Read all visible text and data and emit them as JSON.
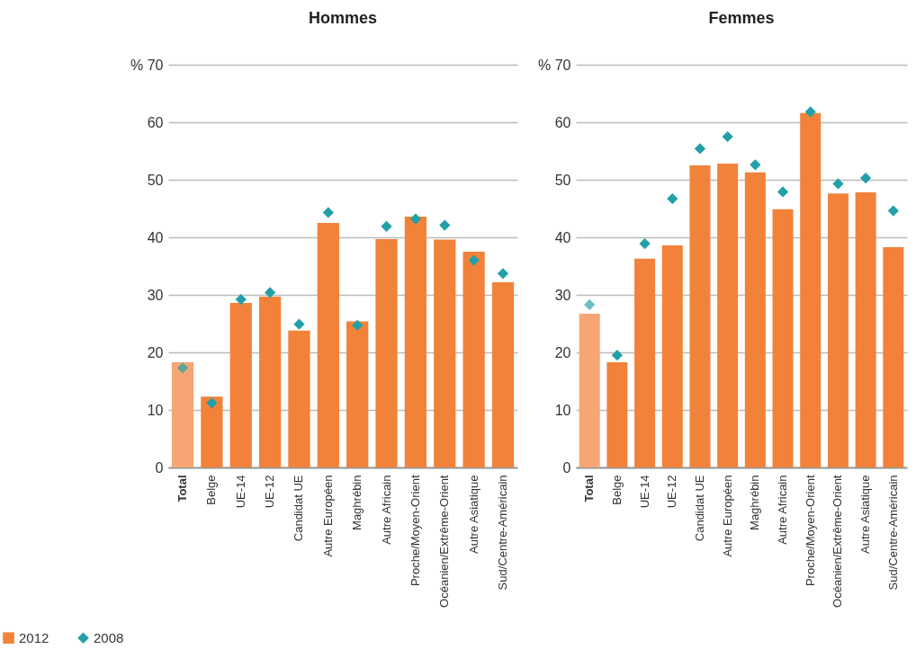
{
  "chart_data": [
    {
      "type": "bar",
      "title": "Hommes",
      "categories": [
        "Total",
        "Belge",
        "UE-14",
        "UE-12",
        "Candidat UE",
        "Autre Européen",
        "Maghrébin",
        "Autre Africain",
        "Proche/Moyen-Orient",
        "Océanien/Extrême-Orient",
        "Autre Asiatique",
        "Sud/Centre-Américain"
      ],
      "series": [
        {
          "name": "2012",
          "type": "bar",
          "color": "#f2823a",
          "colors": [
            "#f5a673",
            "#f2823a",
            "#f2823a",
            "#f2823a",
            "#f2823a",
            "#f2823a",
            "#f2823a",
            "#f2823a",
            "#f2823a",
            "#f2823a",
            "#f2823a",
            "#f2823a"
          ],
          "values": [
            18.3,
            12.3,
            28.6,
            29.7,
            23.8,
            42.5,
            25.4,
            39.7,
            43.6,
            39.6,
            37.5,
            32.2
          ]
        },
        {
          "name": "2008",
          "type": "scatter",
          "marker": "diamond",
          "color": "#22a0a8",
          "colors": [
            "#5fa49a",
            "#22a0a8",
            "#22a0a8",
            "#22a0a8",
            "#22a0a8",
            "#22a0a8",
            "#22a0a8",
            "#22a0a8",
            "#22a0a8",
            "#22a0a8",
            "#22a0a8",
            "#22a0a8"
          ],
          "values": [
            17.3,
            11.2,
            29.2,
            30.4,
            24.9,
            44.3,
            24.7,
            41.9,
            43.2,
            42.1,
            36.0,
            33.7
          ]
        }
      ],
      "ylim": [
        0,
        70
      ],
      "yticks": [
        0,
        10,
        20,
        30,
        40,
        50,
        60,
        {
          "value": 70,
          "label": "% 70"
        }
      ],
      "grid": "y",
      "legend": "bottom left"
    },
    {
      "type": "bar",
      "title": "Femmes",
      "categories": [
        "Total",
        "Belge",
        "UE-14",
        "UE-12",
        "Candidat UE",
        "Autre Européen",
        "Maghrébin",
        "Autre Africain",
        "Proche/Moyen-Orient",
        "Océanien/Extrême-Orient",
        "Autre Asiatique",
        "Sud/Centre-Américain"
      ],
      "series": [
        {
          "name": "2012",
          "type": "bar",
          "color": "#f2823a",
          "colors": [
            "#f5a673",
            "#f2823a",
            "#f2823a",
            "#f2823a",
            "#f2823a",
            "#f2823a",
            "#f2823a",
            "#f2823a",
            "#f2823a",
            "#f2823a",
            "#f2823a",
            "#f2823a"
          ],
          "values": [
            26.7,
            18.3,
            36.3,
            38.6,
            52.5,
            52.8,
            51.3,
            44.9,
            61.6,
            47.6,
            47.8,
            38.3
          ]
        },
        {
          "name": "2008",
          "type": "scatter",
          "marker": "diamond",
          "color": "#22a0a8",
          "colors": [
            "#6cbfc4",
            "#22a0a8",
            "#22a0a8",
            "#22a0a8",
            "#22a0a8",
            "#22a0a8",
            "#22a0a8",
            "#22a0a8",
            "#22a0a8",
            "#22a0a8",
            "#22a0a8",
            "#22a0a8"
          ],
          "values": [
            28.3,
            19.5,
            38.9,
            46.7,
            55.4,
            57.5,
            52.6,
            47.9,
            61.8,
            49.3,
            50.3,
            44.6
          ]
        }
      ],
      "ylim": [
        0,
        70
      ],
      "yticks": [
        0,
        10,
        20,
        30,
        40,
        50,
        60,
        {
          "value": 70,
          "label": "% 70"
        }
      ],
      "grid": "y",
      "legend": false
    }
  ]
}
